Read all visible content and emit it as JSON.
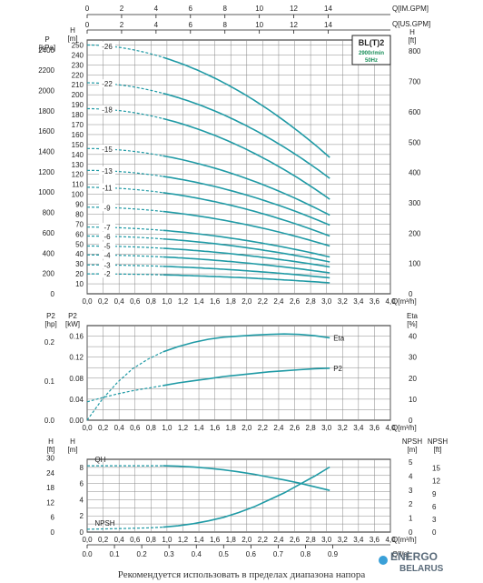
{
  "chart_data": [
    {
      "type": "line",
      "id": "head",
      "badge": {
        "title": "BL(T)2",
        "speed": "2900r/min",
        "freq": "50Hz"
      },
      "ylabel_left_outer": "P\n[kPa]",
      "ylabel_left": "H\n[m]",
      "ylabel_right": "H\n[ft]",
      "xlabel": "Q[m³/h]",
      "top_axis_1_label": "Q[IM.GPM]",
      "top_axis_2_label": "Q[US.GPM]",
      "x_ticks": [
        "0,0",
        "0,2",
        "0,4",
        "0,6",
        "0,8",
        "1,0",
        "1,2",
        "1,4",
        "1,6",
        "1,8",
        "2,0",
        "2,2",
        "2,4",
        "2,6",
        "2,8",
        "3,0",
        "3,2",
        "3,4",
        "3,6",
        "4,0"
      ],
      "imgpm_ticks": [
        "0",
        "2",
        "4",
        "6",
        "8",
        "10",
        "12",
        "14"
      ],
      "usgpm_ticks": [
        "0",
        "2",
        "4",
        "6",
        "8",
        "10",
        "12",
        "14"
      ],
      "kpa_ticks": [
        "0",
        "200",
        "400",
        "600",
        "800",
        "1000",
        "1200",
        "1400",
        "1600",
        "1800",
        "2000",
        "2200",
        "2400"
      ],
      "m_ticks": [
        "10",
        "20",
        "30",
        "40",
        "50",
        "60",
        "70",
        "80",
        "90",
        "100",
        "110",
        "120",
        "130",
        "140",
        "150",
        "160",
        "170",
        "180",
        "190",
        "200",
        "210",
        "220",
        "230",
        "240",
        "250"
      ],
      "ft_ticks": [
        "0",
        "100",
        "200",
        "300",
        "400",
        "500",
        "600",
        "700",
        "800"
      ],
      "stages": [
        {
          "label": "-26",
          "h0": 250,
          "h_end": 137
        },
        {
          "label": "-22",
          "h0": 212,
          "h_end": 116
        },
        {
          "label": "-18",
          "h0": 186,
          "h_end": 95
        },
        {
          "label": "-15",
          "h0": 146,
          "h_end": 79
        },
        {
          "label": "-13",
          "h0": 124,
          "h_end": 69
        },
        {
          "label": "-11",
          "h0": 107,
          "h_end": 58
        },
        {
          "label": "-9",
          "h0": 87,
          "h_end": 48
        },
        {
          "label": "-7",
          "h0": 67,
          "h_end": 37
        },
        {
          "label": "-6",
          "h0": 58,
          "h_end": 32
        },
        {
          "label": "-5",
          "h0": 48,
          "h_end": 27
        },
        {
          "label": "-4",
          "h0": 39,
          "h_end": 21
        },
        {
          "label": "-3",
          "h0": 29,
          "h_end": 16
        },
        {
          "label": "-2",
          "h0": 20,
          "h_end": 11
        }
      ],
      "q_solid_start": 1.0,
      "q_end": 3.2,
      "xlim": [
        0,
        4.0
      ],
      "ylim": [
        0,
        255
      ]
    },
    {
      "type": "line",
      "id": "power-efficiency",
      "ylabel_p2_hp": "P2\n[hp]",
      "ylabel_p2_kw": "P2\n[kW]",
      "ylabel_eta": "Eta\n[%]",
      "xlabel": "Q[m³/h]",
      "kw_ticks": [
        "0.00",
        "0.04",
        "0.08",
        "0.12",
        "0.16"
      ],
      "hp_ticks": [
        "0.0",
        "0.1",
        "0.2"
      ],
      "eta_ticks": [
        "0",
        "10",
        "20",
        "30",
        "40"
      ],
      "x_ticks": [
        "0,0",
        "0,2",
        "0,4",
        "0,6",
        "0,8",
        "1,0",
        "1,2",
        "1,4",
        "1,6",
        "1,8",
        "2,0",
        "2,2",
        "2,4",
        "2,6",
        "2,8",
        "3,0",
        "3,2",
        "3,4",
        "3,6",
        "4,0"
      ],
      "series": [
        {
          "name": "Eta",
          "x": [
            0,
            0.2,
            0.4,
            0.6,
            0.8,
            1.0,
            1.2,
            1.4,
            1.6,
            1.8,
            2.0,
            2.2,
            2.4,
            2.6,
            2.8,
            3.0,
            3.2
          ],
          "y": [
            0,
            10,
            18,
            24.5,
            29,
            32.5,
            35,
            37,
            38.5,
            39.5,
            40,
            40.5,
            40.8,
            41,
            40.8,
            40.2,
            39.2
          ],
          "color": "#1f9aa5"
        },
        {
          "name": "P2",
          "x": [
            0,
            0.2,
            0.4,
            0.6,
            0.8,
            1.0,
            1.2,
            1.4,
            1.6,
            1.8,
            2.0,
            2.2,
            2.4,
            2.6,
            2.8,
            3.0,
            3.2
          ],
          "y": [
            0.035,
            0.043,
            0.05,
            0.056,
            0.061,
            0.066,
            0.071,
            0.075,
            0.079,
            0.083,
            0.086,
            0.089,
            0.092,
            0.094,
            0.096,
            0.098,
            0.099
          ],
          "color": "#1f9aa5"
        }
      ],
      "dashed_until": 1.0,
      "xlim": [
        0,
        4.0
      ],
      "ylim_kw": [
        0,
        0.18
      ],
      "ylim_eta": [
        0,
        45
      ]
    },
    {
      "type": "line",
      "id": "npsh",
      "ylabel_h_ft": "H\n[ft]",
      "ylabel_h_m": "H\n[m]",
      "ylabel_npsh_m": "NPSH\n[m]",
      "ylabel_npsh_ft": "NPSH\n[ft]",
      "xlabel_m3h": "Q[m³/h]",
      "xlabel_ls": "Q[l/s]",
      "m3h_ticks": [
        "0,0",
        "0,2",
        "0,4",
        "0,6",
        "0,8",
        "1,0",
        "1,2",
        "1,4",
        "1,6",
        "1,8",
        "2,0",
        "2,2",
        "2,4",
        "2,6",
        "2,8",
        "3,0",
        "3,2",
        "3,4",
        "3,6",
        "4,0"
      ],
      "ls_ticks": [
        "0.0",
        "0.1",
        "0.2",
        "0.3",
        "0.4",
        "0.5",
        "0.6",
        "0.7",
        "0.8",
        "0.9"
      ],
      "h_ft_ticks": [
        "0",
        "6",
        "12",
        "18",
        "24",
        "30"
      ],
      "h_m_ticks": [
        "0",
        "2",
        "4",
        "6",
        "8"
      ],
      "npsh_m_ticks": [
        "0",
        "1",
        "2",
        "3",
        "4",
        "5"
      ],
      "npsh_ft_ticks": [
        "0",
        "3",
        "6",
        "9",
        "12",
        "15"
      ],
      "series": [
        {
          "name": "QH",
          "x": [
            0,
            0.4,
            0.8,
            1.0,
            1.2,
            1.4,
            1.6,
            1.8,
            2.0,
            2.2,
            2.4,
            2.6,
            2.8,
            3.0,
            3.2
          ],
          "y": [
            8.2,
            8.2,
            8.2,
            8.2,
            8.15,
            8.05,
            7.9,
            7.7,
            7.45,
            7.15,
            6.8,
            6.45,
            6.05,
            5.6,
            5.15
          ],
          "color": "#1f9aa5"
        },
        {
          "name": "NPSH",
          "x": [
            0,
            0.4,
            0.8,
            1.0,
            1.2,
            1.4,
            1.6,
            1.8,
            2.0,
            2.2,
            2.4,
            2.6,
            2.8,
            3.0,
            3.2
          ],
          "y": [
            0.2,
            0.25,
            0.3,
            0.35,
            0.45,
            0.6,
            0.8,
            1.05,
            1.4,
            1.8,
            2.3,
            2.8,
            3.4,
            4.0,
            4.65
          ],
          "color": "#1f9aa5"
        }
      ],
      "dashed_until": 1.0,
      "xlim": [
        0,
        4.0
      ],
      "ylim_m": [
        0,
        9
      ],
      "ylim_npsh": [
        0,
        5.2
      ]
    }
  ],
  "footer": "Рекомендуется использовать в пределах диапазона напора",
  "watermark": {
    "line1": "ENERGO",
    "line2": "BELARUS"
  }
}
